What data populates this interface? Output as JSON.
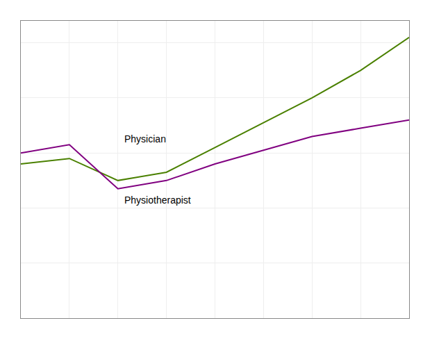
{
  "chart_data": {
    "type": "line",
    "x": [
      0,
      1,
      2,
      3,
      4,
      5,
      6,
      7,
      8
    ],
    "series": [
      {
        "color": "#4a8000",
        "values": [
          0.56,
          0.58,
          0.5,
          0.53,
          0.62,
          0.71,
          0.8,
          0.9,
          1.02
        ]
      },
      {
        "color": "#800080",
        "values": [
          0.6,
          0.63,
          0.47,
          0.5,
          0.56,
          0.61,
          0.66,
          0.69,
          0.72
        ]
      }
    ],
    "annotations": [
      {
        "text": "Physician",
        "x": 2.1,
        "y": 0.625
      },
      {
        "text": "Physiotherapist",
        "x": 2.1,
        "y": 0.455
      }
    ],
    "xlim": [
      0,
      8
    ],
    "xticks": [
      0,
      1,
      2,
      3,
      4,
      5,
      6,
      7,
      8
    ],
    "ylim": [
      0,
      1.08
    ],
    "yticks": [
      0,
      0.2,
      0.4,
      0.6,
      0.8,
      1.0
    ],
    "grid": true,
    "tick_labels": false
  }
}
